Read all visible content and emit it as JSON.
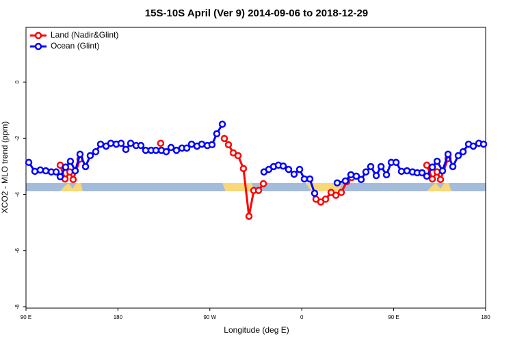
{
  "chart_data": {
    "type": "line",
    "title": "15S-10S April (Ver 9)   2014-09-06 to 2018-12-29",
    "x_label": "Longitude (deg E)",
    "y_label": "XCO2 - MLO trend (ppm)",
    "xlim": [
      90,
      540
    ],
    "xticks": [
      {
        "value": 90,
        "label": "90 E"
      },
      180,
      {
        "value": 270,
        "label": "90 W"
      },
      {
        "value": 360,
        "label": "0"
      },
      {
        "value": 450,
        "label": "90 E"
      },
      {
        "value": 540,
        "label": "180"
      }
    ],
    "ylim": [
      -8.05,
      1.95
    ],
    "yticks": [
      0,
      -2,
      -4,
      -6,
      -8
    ],
    "legend": "top-left",
    "series": [
      {
        "name": "Land (Nadir&Glint)",
        "color": "#ff0000",
        "x": [
          123.5,
          128.2,
          132.9,
          136.2,
          142.9,
          null,
          221.9,
          null,
          284.2,
          288.2,
          292.9,
          297.6,
          302.9,
          308.3,
          313.0,
          317.7,
          322.4,
          null,
          373.9,
          378.6,
          383.3,
          388.7,
          393.4,
          398.7,
          404.1,
          408.8,
          null,
          482.4,
          487.8,
          492.5,
          495.8,
          503.2
        ],
        "values": [
          -2.96,
          -3.45,
          -3.2,
          -3.47,
          -2.74,
          null,
          -2.18,
          null,
          -2.01,
          -2.23,
          -2.52,
          -2.62,
          -3.08,
          -4.78,
          -3.86,
          -3.86,
          -3.62,
          null,
          -4.17,
          -4.27,
          -4.17,
          -3.93,
          -4.03,
          -3.93,
          -3.54,
          -3.4,
          null,
          -2.96,
          -3.45,
          -3.2,
          -3.47,
          -2.72
        ]
      },
      {
        "name": "Ocean (Glint)",
        "color": "#0000ff",
        "x": [
          92.7,
          98.7,
          104.0,
          109.4,
          114.8,
          119.5,
          123.5,
          128.8,
          133.5,
          138.2,
          142.9,
          148.3,
          152.9,
          158.3,
          163.0,
          168.4,
          173.0,
          178.4,
          183.1,
          187.8,
          192.5,
          197.8,
          202.5,
          207.2,
          212.5,
          217.2,
          222.6,
          227.3,
          232.0,
          237.3,
          242.7,
          247.4,
          252.1,
          257.4,
          262.1,
          267.5,
          272.1,
          276.8,
          282.2,
          null,
          323.0,
          327.7,
          332.4,
          337.1,
          341.8,
          347.1,
          352.5,
          357.9,
          362.5,
          367.9,
          372.6,
          null,
          394.7,
          402.7,
          408.1,
          413.4,
          418.1,
          422.8,
          427.5,
          432.9,
          437.6,
          442.9,
          447.6,
          452.3,
          457.6,
          463.0,
          468.4,
          473.0,
          477.7,
          482.4,
          487.8,
          492.5,
          497.8,
          503.2,
          507.9,
          513.2,
          517.9,
          523.3,
          527.9,
          533.3,
          538.0
        ],
        "values": [
          -2.86,
          -3.18,
          -3.13,
          -3.16,
          -3.2,
          -3.2,
          -3.37,
          -3.03,
          -2.82,
          -3.16,
          -2.57,
          -3.01,
          -2.62,
          -2.48,
          -2.21,
          -2.28,
          -2.18,
          -2.21,
          -2.18,
          -2.4,
          -2.18,
          -2.26,
          -2.26,
          -2.43,
          -2.43,
          -2.43,
          -2.43,
          -2.48,
          -2.33,
          -2.43,
          -2.35,
          -2.35,
          -2.21,
          -2.28,
          -2.21,
          -2.26,
          -2.23,
          -1.84,
          -1.5,
          null,
          -3.2,
          -3.11,
          -3.01,
          -2.96,
          -2.99,
          -3.11,
          -3.28,
          -3.11,
          -3.45,
          -3.45,
          -3.96,
          null,
          -3.59,
          -3.52,
          -3.3,
          -3.35,
          -3.47,
          -3.2,
          -3.01,
          -3.33,
          -3.01,
          -3.3,
          -2.86,
          -2.86,
          -3.18,
          -3.16,
          -3.2,
          -3.23,
          -3.23,
          -3.35,
          -3.03,
          -2.82,
          -3.16,
          -2.57,
          -3.01,
          -2.62,
          -2.48,
          -2.21,
          -2.28,
          -2.18,
          -2.21
        ]
      }
    ]
  }
}
